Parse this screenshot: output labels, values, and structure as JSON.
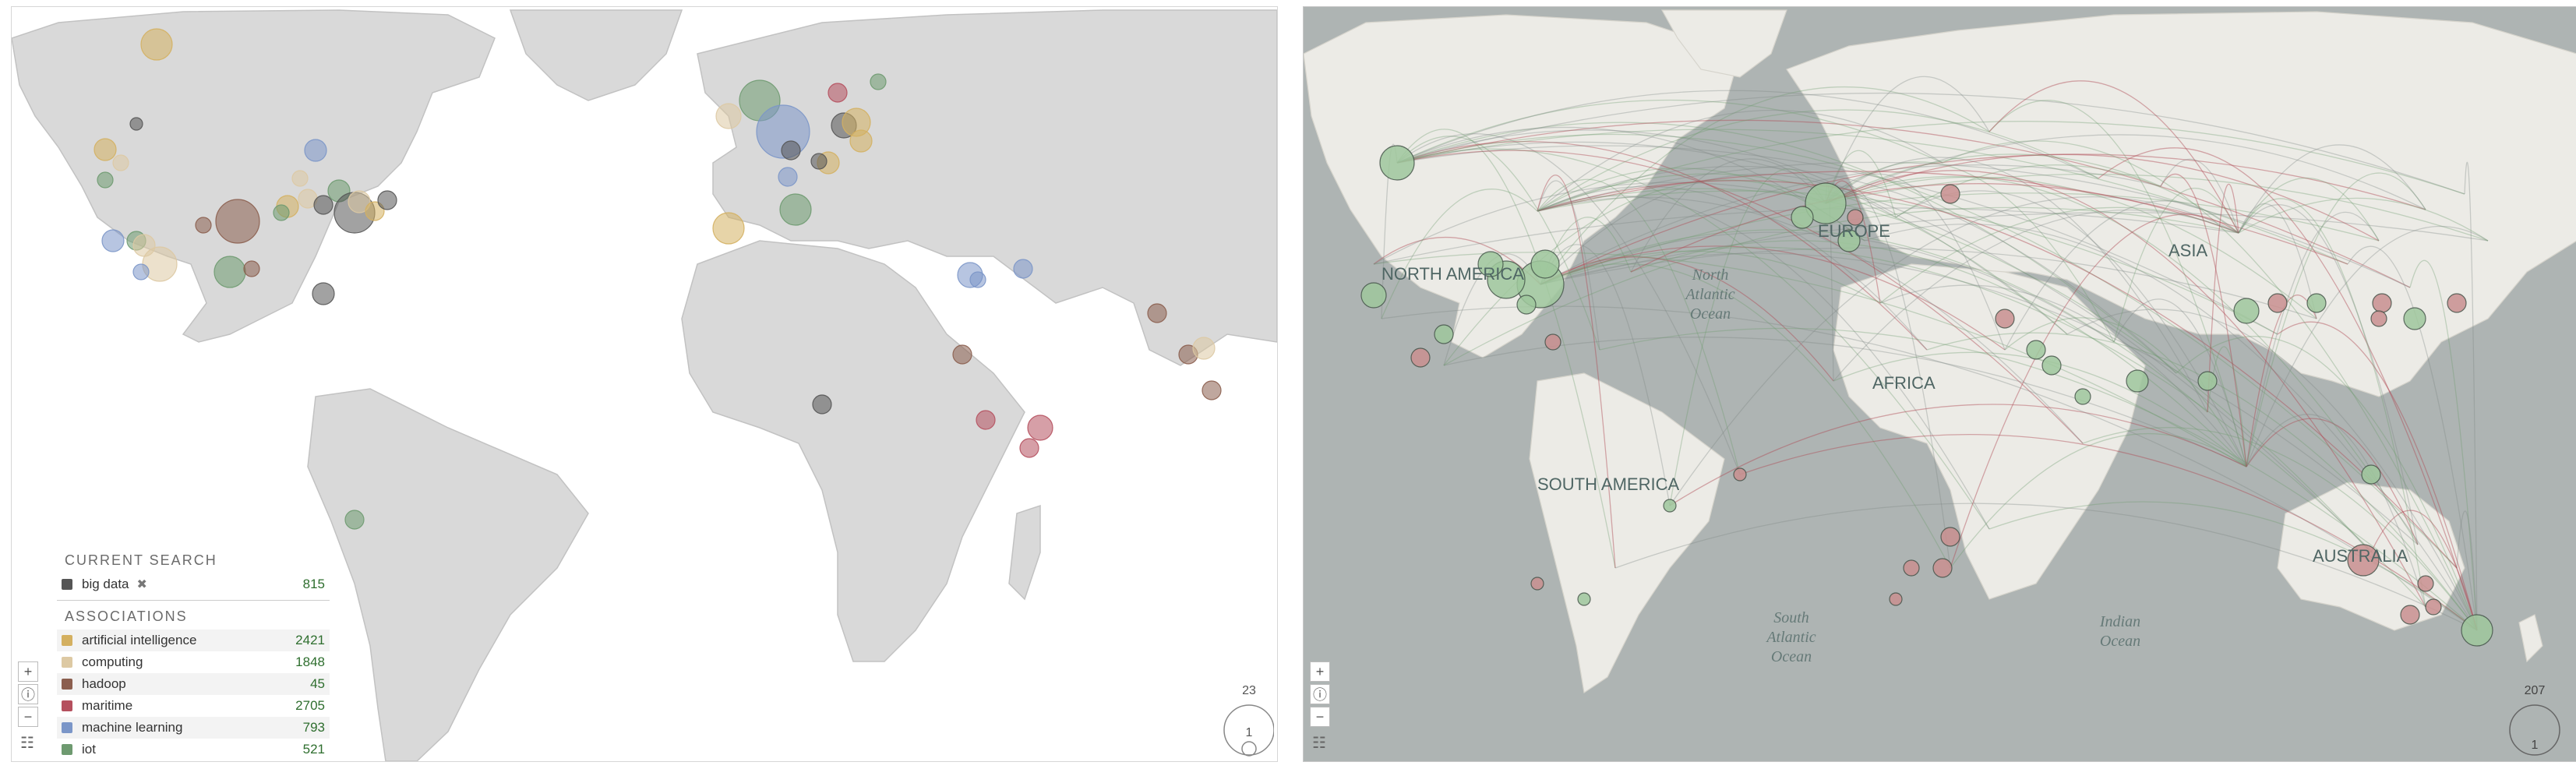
{
  "legend": {
    "current_search_title": "CURRENT SEARCH",
    "search_term": {
      "label": "big data",
      "count": "815",
      "color": "#555555"
    },
    "associations_title": "ASSOCIATIONS",
    "items": [
      {
        "label": "artificial intelligence",
        "count": "2421",
        "color": "#d4b060"
      },
      {
        "label": "computing",
        "count": "1848",
        "color": "#ddc9a3"
      },
      {
        "label": "hadoop",
        "count": "45",
        "color": "#8b5e4e"
      },
      {
        "label": "maritime",
        "count": "2705",
        "color": "#b5505e"
      },
      {
        "label": "machine learning",
        "count": "793",
        "color": "#7b96c8"
      },
      {
        "label": "iot",
        "count": "521",
        "color": "#6e9a70"
      }
    ]
  },
  "left_scale": {
    "max": "23",
    "min": "1"
  },
  "right_scale": {
    "max": "207",
    "min": "1"
  },
  "right_map": {
    "continents": [
      "NORTH AMERICA",
      "EUROPE",
      "ASIA",
      "AFRICA",
      "SOUTH AMERICA",
      "AUSTRALIA"
    ],
    "oceans": {
      "north_atlantic": [
        "North",
        "Atlantic",
        "Ocean"
      ],
      "south_atlantic": [
        "South",
        "Atlantic",
        "Ocean"
      ],
      "indian": [
        "Indian",
        "Ocean"
      ]
    },
    "link_colors": {
      "green": "#6c9c6e",
      "red": "#b04a55",
      "gray": "#7d8684"
    }
  },
  "zoom": {
    "in": "+",
    "info": "ⓘ",
    "out": "−"
  },
  "icons": {
    "left_controls": "sliders-icon",
    "right_controls": "sliders-icon",
    "remove": "close-icon"
  }
}
